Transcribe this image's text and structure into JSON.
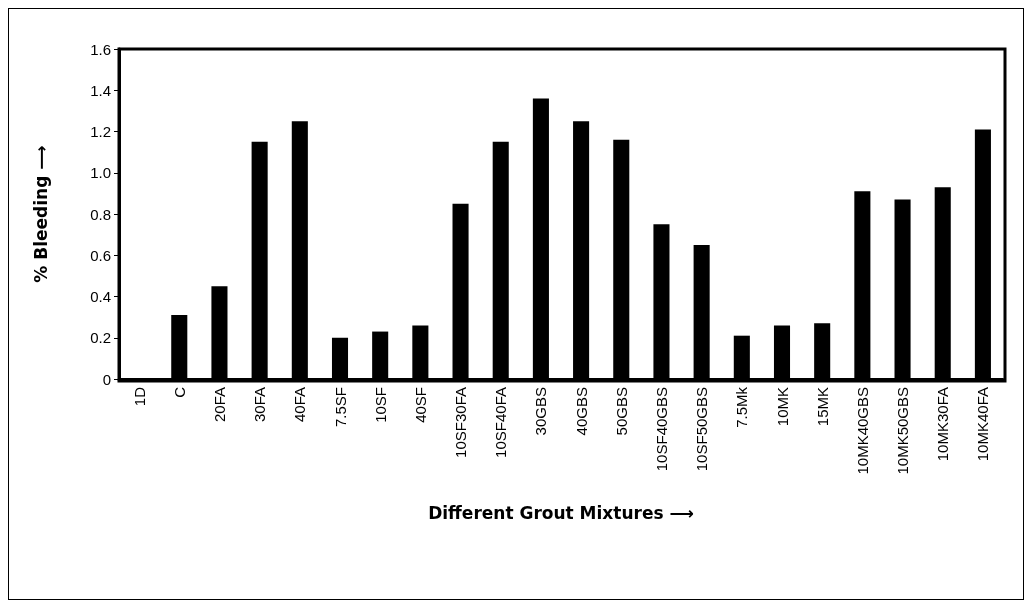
{
  "chart_data": {
    "type": "bar",
    "xlabel": "Different Grout Mixtures ⟶",
    "ylabel": "% Bleeding ⟶",
    "categories": [
      "1D",
      "C",
      "20FA",
      "30FA",
      "40FA",
      "7.5SF",
      "10SF",
      "40SF",
      "10SF30FA",
      "10SF40FA",
      "30GBS",
      "40GBS",
      "50GBS",
      "10SF40GBS",
      "10SF50GBS",
      "7.5Mk",
      "10MK",
      "15MK",
      "10MK40GBS",
      "10MK50GBS",
      "10MK30FA",
      "10MK40FA"
    ],
    "values": [
      0,
      0.31,
      0.45,
      1.15,
      1.25,
      0.2,
      0.23,
      0.26,
      0.85,
      1.15,
      1.36,
      1.25,
      1.16,
      0.75,
      0.65,
      0.21,
      0.26,
      0.27,
      0.91,
      0.87,
      0.93,
      1.21
    ],
    "color": "#000000",
    "ylim": [
      0,
      1.6
    ],
    "yticks": [
      0,
      0.2,
      0.4,
      0.6,
      0.8,
      {
        "value": 1,
        "label": "1.0"
      },
      1.2,
      1.4,
      1.6
    ],
    "grid": false
  }
}
